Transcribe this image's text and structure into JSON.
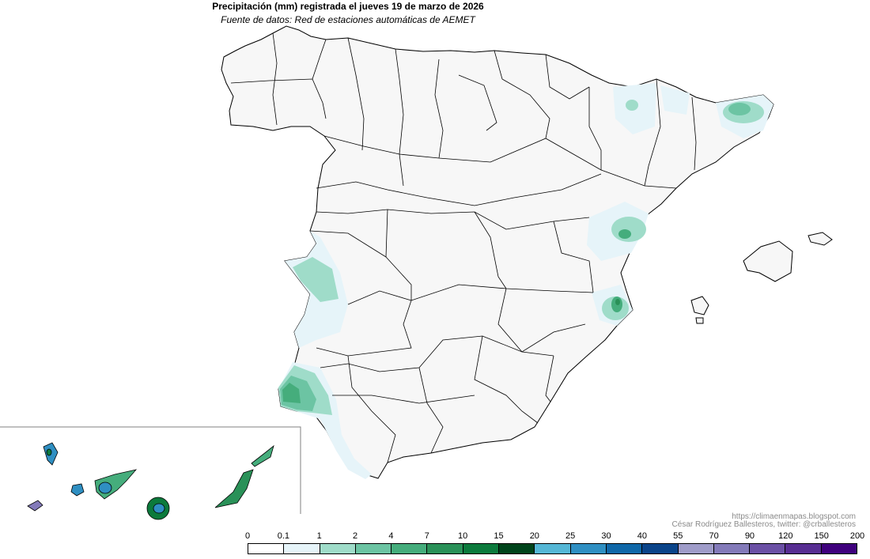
{
  "title": "Precipitación (mm) registrada el jueves 19 de marzo de 2026",
  "subtitle": "Fuente de datos: Red de estaciones automáticas de AEMET",
  "credits": {
    "url": "https://climaenmapas.blogspot.com",
    "author": "César Rodríguez Ballesteros, twitter: @crballesteros"
  },
  "legend": {
    "ticks": [
      "0",
      "0.1",
      "1",
      "2",
      "4",
      "7",
      "10",
      "15",
      "20",
      "25",
      "30",
      "40",
      "55",
      "70",
      "90",
      "120",
      "150",
      "200"
    ],
    "colors": [
      "#ffffff",
      "#e6f4f9",
      "#9fdcc9",
      "#6cc4a3",
      "#45ad7c",
      "#2a9158",
      "#0c7a3c",
      "#00441b",
      "#55b7d6",
      "#2f8fc2",
      "#0f67a8",
      "#0a4489",
      "#9f9cc9",
      "#837ab9",
      "#6b50a5",
      "#572d92",
      "#3f007d"
    ]
  },
  "map": {
    "land_color": "#f7f7f7",
    "border_color": "#000000",
    "rain_areas": [
      {
        "region": "Lleida Pirineo",
        "level": "1-2"
      },
      {
        "region": "Girona",
        "level": "2-4"
      },
      {
        "region": "Castellón",
        "level": "2-4"
      },
      {
        "region": "Valencia",
        "level": "4-7"
      },
      {
        "region": "Badajoz / Alentejo",
        "level": "1-2"
      },
      {
        "region": "Huelva",
        "level": "4-10"
      },
      {
        "region": "Cádiz",
        "level": "1-2"
      },
      {
        "region": "La Palma",
        "level": "10-30"
      },
      {
        "region": "Tenerife",
        "level": "7-30"
      },
      {
        "region": "Gran Canaria",
        "level": "10-40"
      },
      {
        "region": "Fuerteventura",
        "level": "7-10"
      },
      {
        "region": "Lanzarote",
        "level": "2-4"
      },
      {
        "region": "El Hierro",
        "level": "55-70"
      }
    ]
  }
}
